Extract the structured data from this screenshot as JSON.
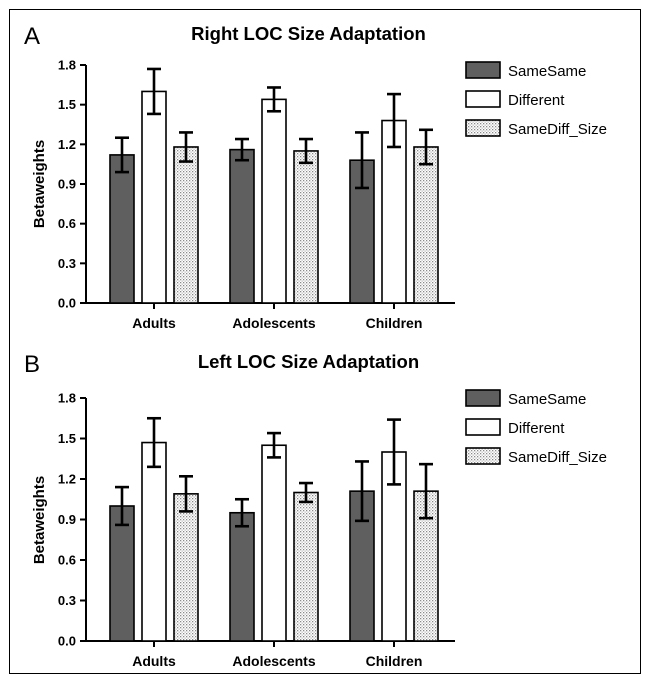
{
  "colors": {
    "SameSame": "#5f5f5f",
    "Different": "#ffffff",
    "SameDiff_Size": "dotted"
  },
  "chart_data": [
    {
      "panel": "A",
      "type": "bar",
      "title": "Right LOC Size Adaptation",
      "xlabel": "",
      "ylabel": "Betaweights",
      "ylim": [
        0,
        1.8
      ],
      "yticks": [
        "0.0",
        "0.3",
        "0.6",
        "0.9",
        "1.2",
        "1.5",
        "1.8"
      ],
      "categories": [
        "Adults",
        "Adolescents",
        "Children"
      ],
      "legend_position": "right",
      "series": [
        {
          "name": "SameSame",
          "values": [
            1.12,
            1.16,
            1.08
          ],
          "errors": [
            0.13,
            0.08,
            0.21
          ]
        },
        {
          "name": "Different",
          "values": [
            1.6,
            1.54,
            1.38
          ],
          "errors": [
            0.17,
            0.09,
            0.2
          ]
        },
        {
          "name": "SameDiff_Size",
          "values": [
            1.18,
            1.15,
            1.18
          ],
          "errors": [
            0.11,
            0.09,
            0.13
          ]
        }
      ]
    },
    {
      "panel": "B",
      "type": "bar",
      "title": "Left LOC Size Adaptation",
      "xlabel": "",
      "ylabel": "Betaweights",
      "ylim": [
        0,
        1.8
      ],
      "yticks": [
        "0.0",
        "0.3",
        "0.6",
        "0.9",
        "1.2",
        "1.5",
        "1.8"
      ],
      "categories": [
        "Adults",
        "Adolescents",
        "Children"
      ],
      "legend_position": "right",
      "series": [
        {
          "name": "SameSame",
          "values": [
            1.0,
            0.95,
            1.11
          ],
          "errors": [
            0.14,
            0.1,
            0.22
          ]
        },
        {
          "name": "Different",
          "values": [
            1.47,
            1.45,
            1.4
          ],
          "errors": [
            0.18,
            0.09,
            0.24
          ]
        },
        {
          "name": "SameDiff_Size",
          "values": [
            1.09,
            1.1,
            1.11
          ],
          "errors": [
            0.13,
            0.07,
            0.2
          ]
        }
      ]
    }
  ]
}
